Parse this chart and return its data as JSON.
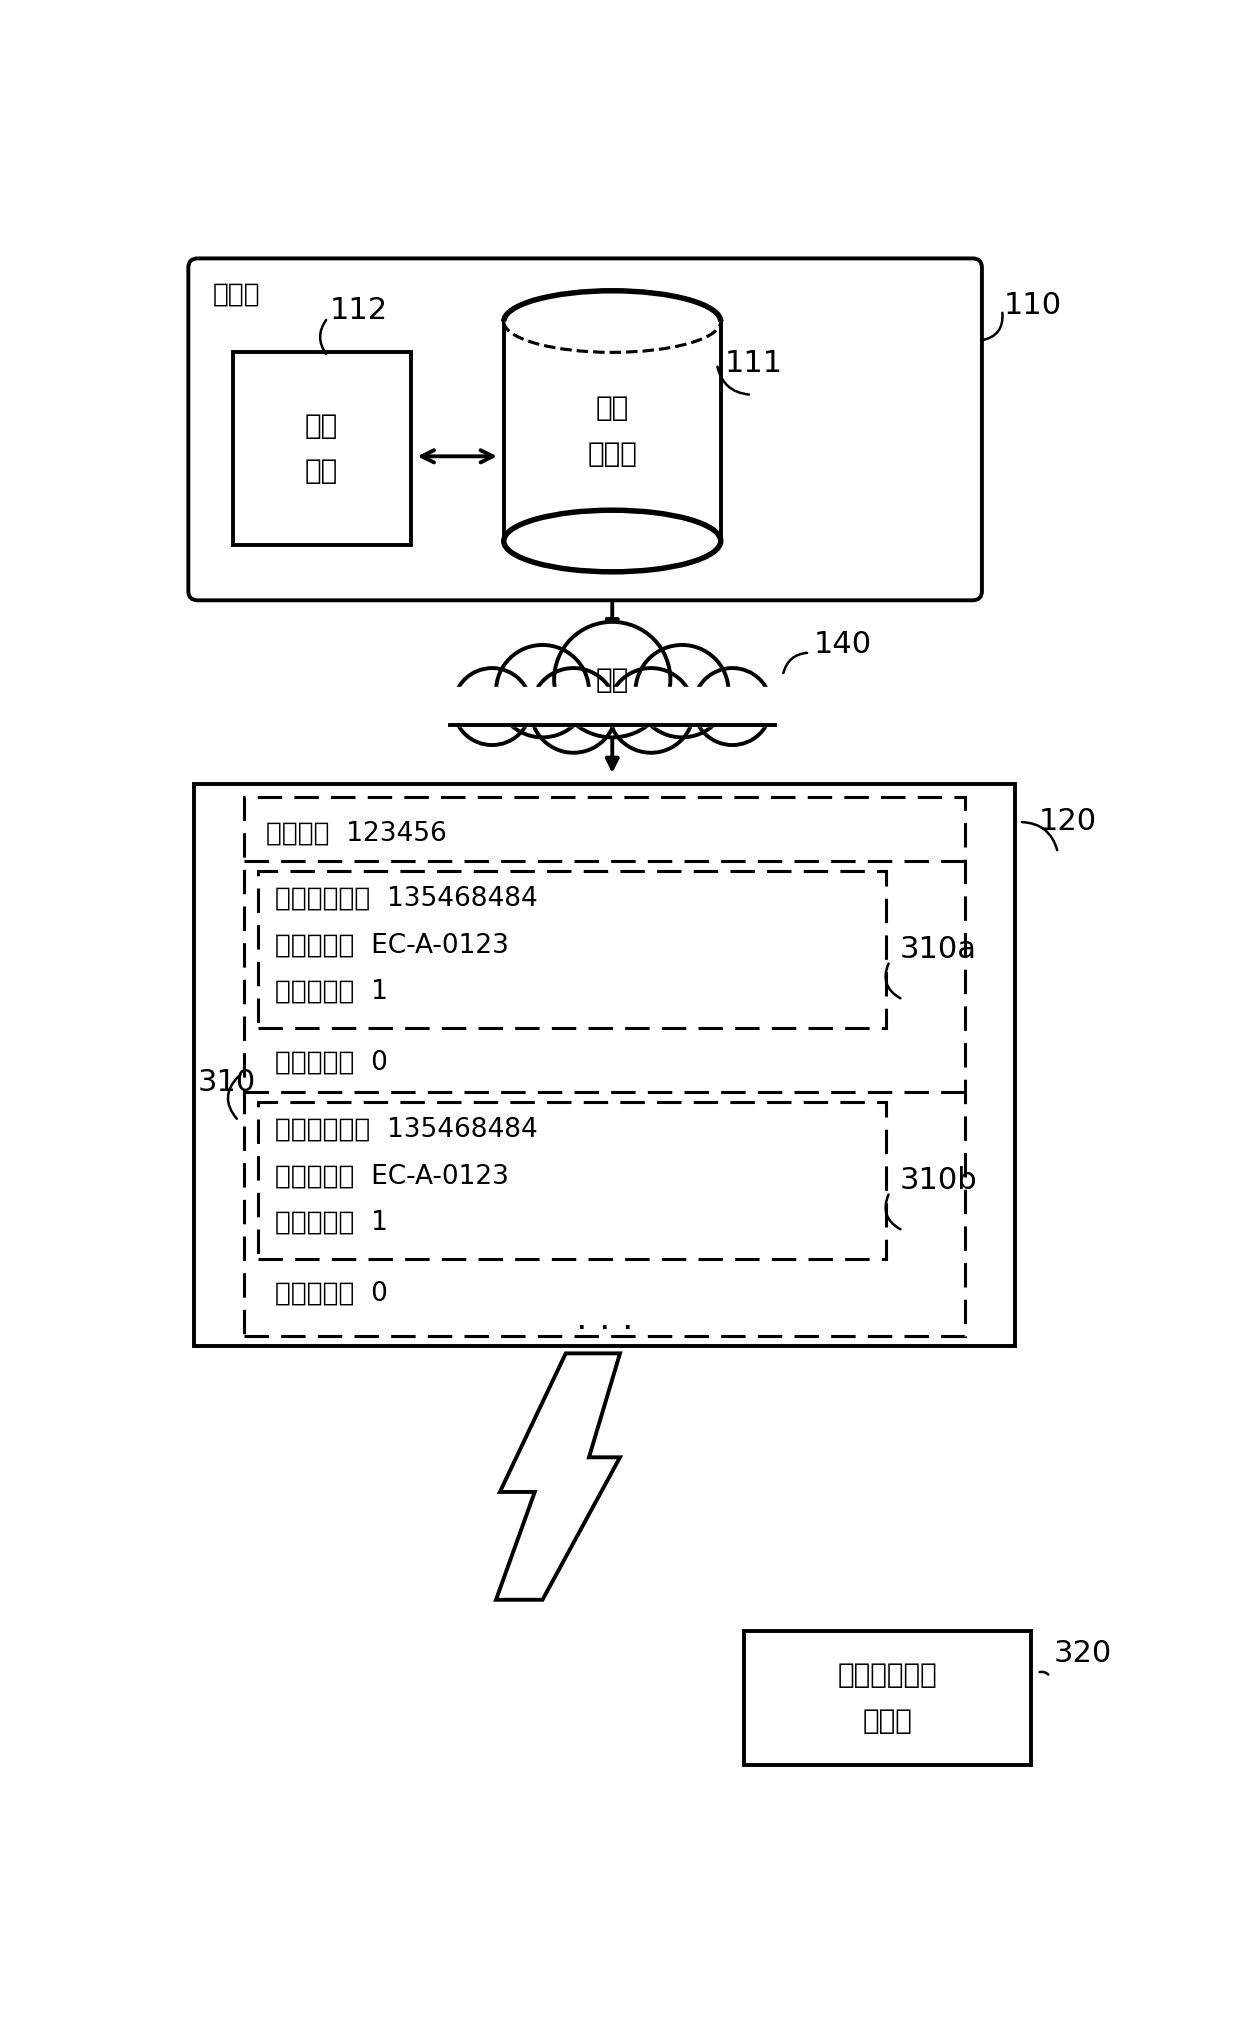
{
  "bg_color": "#ffffff",
  "label_110": "110",
  "label_111": "111",
  "label_112": "112",
  "label_140": "140",
  "label_120": "120",
  "label_310": "310",
  "label_310a": "310a",
  "label_310b": "310b",
  "label_320": "320",
  "text_fenpeiduan": "分配端",
  "text_renwumokuai": "任务\n模块",
  "text_huopinshuJuku": "货品\n数据库",
  "text_wangluo": "网络",
  "text_order": "拣货单：  123456",
  "text_barcode_a": "拣货条形码：  135468484",
  "text_position_a": "拣货位置：  EC-A-0123",
  "text_qty_a": "拣货数量：  1",
  "text_scan_a": "扫描数量：  0",
  "text_barcode_b": "拣货条形码：  135468484",
  "text_position_b": "拣货位置：  EC-A-0123",
  "text_qty_b": "拣货数量：  1",
  "text_scan_b": "扫描数量：  0",
  "text_product": "具商品条形码\n的商品"
}
